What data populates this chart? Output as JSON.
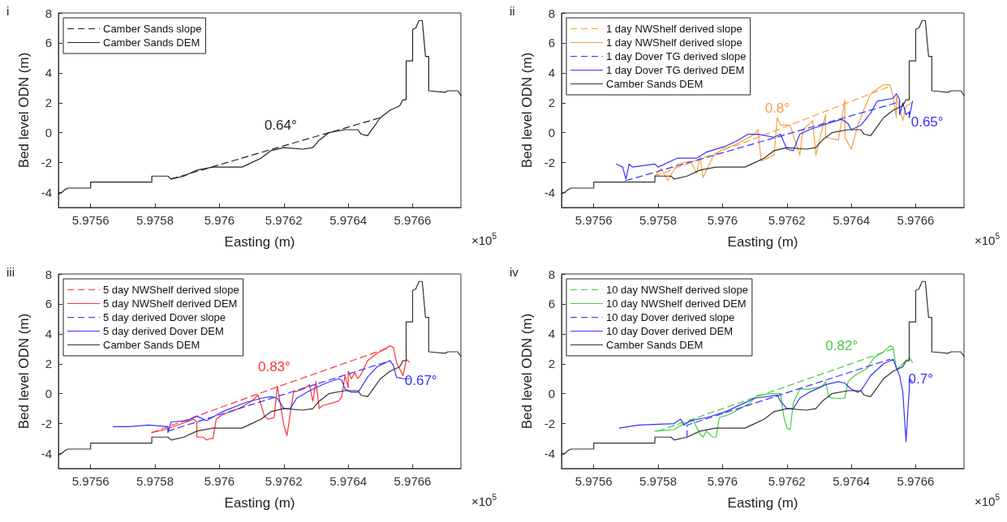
{
  "chart_data": [
    {
      "type": "line",
      "xlabel": "Easting (m)",
      "ylabel": "Bed level ODN (m)",
      "xlim": [
        5.9755,
        5.97675
      ],
      "xticks": [
        5.9756,
        5.9758,
        5.976,
        5.9762,
        5.9764,
        5.9766
      ],
      "ylim": [
        -5,
        8
      ],
      "yticks": [
        -4,
        -2,
        0,
        2,
        4,
        6,
        8
      ],
      "legend": "top left",
      "marker": "none",
      "annotations": [
        "i",
        "×10$^{5}$",
        {
          "text": "0.64°",
          "x": 5.97618,
          "y": -1.0
        }
      ],
      "series": [
        {
          "name": "Camber Sands slope",
          "color": "#222222",
          "line_style": "dashed",
          "x": [
            5.97585,
            5.97618,
            5.9765
          ],
          "values": [
            -3.1,
            -1.0,
            1.0
          ]
        },
        {
          "name": "Camber Sands DEM",
          "color": "#222222",
          "line_style": "solid",
          "x": [
            5.9755,
            5.97551,
            5.97552,
            5.97553,
            5.9756,
            5.9756,
            5.97579,
            5.97579,
            5.97584,
            5.97585,
            5.97589,
            5.97593,
            5.97598,
            5.97607,
            5.9761,
            5.97613,
            5.97616,
            5.9762,
            5.97626,
            5.97629,
            5.97631,
            5.97634,
            5.97639,
            5.97643,
            5.97644,
            5.97646,
            5.97648,
            5.9765,
            5.97653,
            5.97656,
            5.97657,
            5.97658,
            5.97658,
            5.9766,
            5.9766,
            5.97661,
            5.97662,
            5.97663,
            5.97664,
            5.97665,
            5.97665,
            5.9767,
            5.97671,
            5.97674,
            5.97675
          ],
          "values": [
            -4.1,
            -4.0,
            -3.8,
            -3.7,
            -3.7,
            -3.3,
            -3.3,
            -2.9,
            -2.9,
            -3.1,
            -2.9,
            -2.5,
            -2.3,
            -2.3,
            -2.0,
            -1.7,
            -1.2,
            -1.0,
            -1.1,
            -1.0,
            -0.5,
            0.0,
            0.2,
            0.2,
            -0.1,
            -0.2,
            0.4,
            1.0,
            1.5,
            1.8,
            2.2,
            2.2,
            4.8,
            4.8,
            6.9,
            7.0,
            7.5,
            7.5,
            5.1,
            5.1,
            2.8,
            2.7,
            2.8,
            2.8,
            2.5
          ]
        }
      ]
    },
    {
      "type": "line",
      "xlabel": "Easting (m)",
      "ylabel": "Bed level ODN (m)",
      "xlim": [
        5.9755,
        5.97675
      ],
      "xticks": [
        5.9756,
        5.9758,
        5.976,
        5.9762,
        5.9764,
        5.9766
      ],
      "ylim": [
        -5,
        8
      ],
      "yticks": [
        -4,
        -2,
        0,
        2,
        4,
        6,
        8
      ],
      "legend": "top left",
      "marker": "none",
      "annotations": [
        "ii",
        "×10$^{5}$",
        {
          "text": "0.8°",
          "x": 5.97616,
          "y": 0.1
        },
        {
          "text": "0.65°",
          "x": 5.97654,
          "y": 2.0
        }
      ],
      "series": [
        {
          "name": "1 day NWShelf derived slope",
          "color": "#f7a040",
          "line_style": "dashed",
          "x": [
            5.97579,
            5.97616,
            5.97652
          ],
          "values": [
            -2.9,
            0.1,
            3.1
          ]
        },
        {
          "name": "1 day NWShelf derived slope",
          "color": "#f7a040",
          "line_style": "solid",
          "x": [
            5.97579,
            5.97581,
            5.97583,
            5.97586,
            5.9759,
            5.97592,
            5.97593,
            5.97594,
            5.97597,
            5.976,
            5.97604,
            5.9761,
            5.97611,
            5.97612,
            5.97616,
            5.97617,
            5.97618,
            5.97621,
            5.97624,
            5.97625,
            5.97628,
            5.97629,
            5.97632,
            5.97632,
            5.97636,
            5.97638,
            5.97638,
            5.9764,
            5.97642,
            5.97644,
            5.97646,
            5.9765,
            5.97652,
            5.97653,
            5.97654,
            5.97654,
            5.97656,
            5.97657,
            5.97659
          ],
          "values": [
            -2.9,
            -2.4,
            -3.2,
            -2.1,
            -1.9,
            -2.7,
            -1.6,
            -3.0,
            -1.6,
            -1.1,
            -0.8,
            -0.1,
            0.2,
            -1.9,
            -1.5,
            1.0,
            0.5,
            0.5,
            -1.5,
            0.2,
            0.8,
            -1.5,
            1.2,
            -0.3,
            -0.5,
            2.2,
            -0.3,
            -1.1,
            0.5,
            1.6,
            2.6,
            3.2,
            3.2,
            2.4,
            1.0,
            2.4,
            0.8,
            1.8,
            2.0
          ]
        },
        {
          "name": "1 day Dover TG derived slope",
          "color": "#3333ff",
          "line_style": "dashed",
          "x": [
            5.9757,
            5.97654
          ],
          "values": [
            -3.2,
            2.0
          ]
        },
        {
          "name": "1 day Dover TG derived DEM",
          "color": "#3333ff",
          "line_style": "solid",
          "x": [
            5.97567,
            5.97569,
            5.9757,
            5.97571,
            5.97572,
            5.97579,
            5.9758,
            5.97586,
            5.97588,
            5.97592,
            5.97595,
            5.97601,
            5.97604,
            5.97608,
            5.97611,
            5.97616,
            5.97618,
            5.9762,
            5.97622,
            5.97624,
            5.97627,
            5.97631,
            5.97634,
            5.97637,
            5.97639,
            5.9764,
            5.97643,
            5.97646,
            5.97648,
            5.97653,
            5.97654,
            5.97655,
            5.97655,
            5.97656,
            5.97657,
            5.97658,
            5.97658,
            5.97659
          ],
          "values": [
            -2.1,
            -2.3,
            -3.1,
            -2.1,
            -2.3,
            -2.1,
            -2.3,
            -1.7,
            -1.7,
            -1.7,
            -1.3,
            -0.9,
            -0.6,
            -0.1,
            -0.1,
            -0.3,
            -0.1,
            -1.1,
            -1.2,
            -0.1,
            0.2,
            0.5,
            0.7,
            0.9,
            0.6,
            0.2,
            0.5,
            1.3,
            2.1,
            2.3,
            2.6,
            2.2,
            1.2,
            2.0,
            1.2,
            1.4,
            1.0,
            2.1
          ]
        },
        {
          "name": "Camber Sands DEM",
          "color": "#333333",
          "line_style": "solid",
          "x": [
            5.9755,
            5.97551,
            5.97552,
            5.97553,
            5.9756,
            5.9756,
            5.97579,
            5.97579,
            5.97584,
            5.97585,
            5.97589,
            5.97593,
            5.97598,
            5.97607,
            5.9761,
            5.97613,
            5.97616,
            5.9762,
            5.97626,
            5.97629,
            5.97631,
            5.97634,
            5.97639,
            5.97643,
            5.97644,
            5.97646,
            5.97648,
            5.9765,
            5.97653,
            5.97656,
            5.97657,
            5.97658,
            5.97658,
            5.9766,
            5.9766,
            5.97661,
            5.97662,
            5.97663,
            5.97664,
            5.97665,
            5.97665,
            5.9767,
            5.97671,
            5.97674,
            5.97675
          ],
          "values": [
            -4.1,
            -4.0,
            -3.8,
            -3.7,
            -3.7,
            -3.3,
            -3.3,
            -2.9,
            -2.9,
            -3.1,
            -2.9,
            -2.5,
            -2.3,
            -2.3,
            -2.0,
            -1.7,
            -1.2,
            -1.0,
            -1.1,
            -1.0,
            -0.5,
            0.0,
            0.2,
            0.2,
            -0.1,
            -0.2,
            0.4,
            1.0,
            1.5,
            1.8,
            2.2,
            2.2,
            4.8,
            4.8,
            6.9,
            7.0,
            7.5,
            7.5,
            5.1,
            5.1,
            2.8,
            2.7,
            2.8,
            2.8,
            2.5
          ]
        }
      ]
    },
    {
      "type": "line",
      "xlabel": "Easting (m)",
      "ylabel": "Bed level ODN (m)",
      "xlim": [
        5.9755,
        5.97675
      ],
      "xticks": [
        5.9756,
        5.9758,
        5.976,
        5.9762,
        5.9764,
        5.9766
      ],
      "ylim": [
        -5,
        8
      ],
      "yticks": [
        -4,
        -2,
        0,
        2,
        4,
        6,
        8
      ],
      "legend": "top left",
      "marker": "none",
      "annotations": [
        "iii",
        "×10$^{5}$",
        {
          "text": "0.83°",
          "x": 5.97616,
          "y": 0.3
        },
        {
          "text": "0.67°",
          "x": 5.97653,
          "y": 2.2
        }
      ],
      "series": [
        {
          "name": "5 day NWShelf derived slope",
          "color": "#ff3333",
          "line_style": "dashed",
          "x": [
            5.97579,
            5.97616,
            5.97653
          ],
          "values": [
            -2.6,
            0.3,
            3.1
          ]
        },
        {
          "name": "5 day NWShelf derived DEM",
          "color": "#ff3333",
          "line_style": "solid",
          "x": [
            5.97579,
            5.97583,
            5.97587,
            5.97592,
            5.97593,
            5.97593,
            5.97595,
            5.97596,
            5.97597,
            5.97598,
            5.97599,
            5.97601,
            5.97606,
            5.9761,
            5.97612,
            5.97614,
            5.97615,
            5.97617,
            5.97618,
            5.9762,
            5.97621,
            5.97623,
            5.97626,
            5.97628,
            5.97629,
            5.9763,
            5.97631,
            5.97632,
            5.97637,
            5.97638,
            5.97639,
            5.9764,
            5.9764,
            5.97641,
            5.97642,
            5.97643,
            5.97644,
            5.97646,
            5.97649,
            5.97653,
            5.97654,
            5.97655,
            5.97657,
            5.97658,
            5.97658,
            5.97659
          ],
          "values": [
            -2.6,
            -2.4,
            -2.1,
            -1.7,
            -1.9,
            -2.9,
            -2.9,
            -3.1,
            -3.0,
            -3.0,
            -1.7,
            -1.4,
            -1.0,
            -0.5,
            -0.1,
            -1.5,
            -1.7,
            -1.6,
            0.5,
            -2.1,
            -2.8,
            0.1,
            0.3,
            0.6,
            -0.5,
            0.8,
            -1.0,
            -0.8,
            -0.5,
            -0.2,
            1.2,
            0.4,
            1.5,
            1.0,
            1.4,
            1.0,
            1.3,
            2.2,
            2.7,
            3.2,
            3.1,
            2.1,
            1.2,
            2.2,
            2.3,
            2.1
          ]
        },
        {
          "name": "5 day derived Dover slope",
          "color": "#3333ff",
          "line_style": "dashed",
          "x": [
            5.97584,
            5.97653
          ],
          "values": [
            -2.5,
            2.2
          ]
        },
        {
          "name": "5 day derived Dover DEM",
          "color": "#3333ff",
          "line_style": "solid",
          "x": [
            5.97567,
            5.97572,
            5.97578,
            5.97584,
            5.97584,
            5.97585,
            5.9759,
            5.97593,
            5.97596,
            5.97601,
            5.97608,
            5.97613,
            5.97616,
            5.97618,
            5.9762,
            5.97622,
            5.97624,
            5.97628,
            5.97633,
            5.97637,
            5.97638,
            5.97639,
            5.97641,
            5.97643,
            5.97644,
            5.97646,
            5.97649,
            5.97653,
            5.97654,
            5.97655,
            5.97657,
            5.97659
          ],
          "values": [
            -2.2,
            -2.2,
            -2.1,
            -2.2,
            -2.6,
            -1.9,
            -1.8,
            -1.5,
            -1.8,
            -1.2,
            -0.6,
            -0.3,
            -0.2,
            -0.3,
            -1.0,
            -1.0,
            -0.3,
            0.2,
            0.7,
            1.0,
            0.9,
            0.3,
            0.1,
            0.1,
            0.4,
            1.1,
            1.8,
            2.2,
            1.9,
            1.1,
            1.0,
            1.0
          ]
        },
        {
          "name": "Camber Sands DEM",
          "color": "#333333",
          "line_style": "solid",
          "x": [
            5.9755,
            5.97551,
            5.97552,
            5.97553,
            5.9756,
            5.9756,
            5.97579,
            5.97579,
            5.97584,
            5.97585,
            5.97589,
            5.97593,
            5.97598,
            5.97607,
            5.9761,
            5.97613,
            5.97616,
            5.9762,
            5.97626,
            5.97629,
            5.97631,
            5.97634,
            5.97639,
            5.97643,
            5.97644,
            5.97646,
            5.97648,
            5.9765,
            5.97653,
            5.97656,
            5.97657,
            5.97658,
            5.97658,
            5.9766,
            5.9766,
            5.97661,
            5.97662,
            5.97663,
            5.97664,
            5.97665,
            5.97665,
            5.9767,
            5.97671,
            5.97674,
            5.97675
          ],
          "values": [
            -4.1,
            -4.0,
            -3.8,
            -3.7,
            -3.7,
            -3.3,
            -3.3,
            -2.9,
            -2.9,
            -3.1,
            -2.9,
            -2.5,
            -2.3,
            -2.3,
            -2.0,
            -1.7,
            -1.2,
            -1.0,
            -1.1,
            -1.0,
            -0.5,
            0.0,
            0.2,
            0.2,
            -0.1,
            -0.2,
            0.4,
            1.0,
            1.5,
            1.8,
            2.2,
            2.2,
            4.8,
            4.8,
            6.9,
            7.0,
            7.5,
            7.5,
            5.1,
            5.1,
            2.8,
            2.7,
            2.8,
            2.8,
            2.5
          ]
        }
      ]
    },
    {
      "type": "line",
      "xlabel": "Easting (m)",
      "ylabel": "Bed level ODN (m)",
      "xlim": [
        5.9755,
        5.97675
      ],
      "xticks": [
        5.9756,
        5.9758,
        5.976,
        5.9762,
        5.9764,
        5.9766
      ],
      "ylim": [
        -5,
        8
      ],
      "yticks": [
        -4,
        -2,
        0,
        2,
        4,
        6,
        8
      ],
      "legend": "top left",
      "marker": "none",
      "annotations": [
        "iv",
        "×10$^{5}$",
        {
          "text": "0.82°",
          "x": 5.97636,
          "y": 1.7
        },
        {
          "text": "0.7°",
          "x": 5.97652,
          "y": 2.3
        }
      ],
      "series": [
        {
          "name": "10 day NWShelf derived slope",
          "color": "#44cc44",
          "line_style": "dashed",
          "x": [
            5.9758,
            5.97636,
            5.97653
          ],
          "values": [
            -2.5,
            1.7,
            3.0
          ]
        },
        {
          "name": "10 day NWShelf derived DEM",
          "color": "#44cc44",
          "line_style": "solid",
          "x": [
            5.97579,
            5.97585,
            5.97588,
            5.97591,
            5.97593,
            5.97594,
            5.97595,
            5.97597,
            5.97598,
            5.97599,
            5.97602,
            5.97608,
            5.97611,
            5.97615,
            5.97618,
            5.97619,
            5.9762,
            5.97621,
            5.97622,
            5.97624,
            5.97627,
            5.97631,
            5.97632,
            5.97633,
            5.97634,
            5.97638,
            5.97639,
            5.97641,
            5.97645,
            5.97647,
            5.9765,
            5.97652,
            5.97653,
            5.97654,
            5.97656,
            5.97658,
            5.97659
          ],
          "values": [
            -2.5,
            -2.4,
            -2.0,
            -1.8,
            -2.7,
            -2.9,
            -2.5,
            -2.9,
            -2.9,
            -1.6,
            -1.4,
            -0.7,
            -0.1,
            0.0,
            0.0,
            -1.5,
            -2.3,
            -2.4,
            -0.6,
            0.3,
            0.3,
            0.5,
            0.8,
            -0.2,
            -0.3,
            -0.3,
            0.8,
            1.2,
            1.7,
            2.4,
            2.8,
            3.2,
            3.1,
            1.6,
            2.0,
            2.4,
            2.1
          ]
        },
        {
          "name": "10 day Dover derived slope",
          "color": "#3333ff",
          "line_style": "dashed",
          "x": [
            5.97589,
            5.97589,
            5.97652
          ],
          "values": [
            -2.9,
            -2.1,
            2.3
          ]
        },
        {
          "name": "10 day Dover derived DEM",
          "color": "#3333ff",
          "line_style": "solid",
          "x": [
            5.97568,
            5.97574,
            5.97585,
            5.97587,
            5.97588,
            5.9759,
            5.97595,
            5.97601,
            5.97606,
            5.9761,
            5.97617,
            5.97618,
            5.9762,
            5.97622,
            5.97624,
            5.97627,
            5.97632,
            5.97636,
            5.97638,
            5.9764,
            5.97642,
            5.97643,
            5.97646,
            5.9765,
            5.97653,
            5.97655,
            5.97656,
            5.97657,
            5.97658,
            5.97658,
            5.97659
          ],
          "values": [
            -2.3,
            -2.1,
            -2.0,
            -1.7,
            -2.1,
            -1.8,
            -1.6,
            -1.2,
            -0.7,
            -0.3,
            -0.1,
            -0.5,
            -1.0,
            -1.0,
            -0.3,
            0.1,
            0.6,
            0.8,
            0.7,
            0.3,
            0.1,
            0.2,
            1.2,
            2.0,
            2.3,
            1.2,
            0.1,
            -3.2,
            0.3,
            1.0,
            0.8
          ]
        },
        {
          "name": "Camber Sands DEM",
          "color": "#333333",
          "line_style": "solid",
          "x": [
            5.9755,
            5.97551,
            5.97552,
            5.97553,
            5.9756,
            5.9756,
            5.97579,
            5.97579,
            5.97584,
            5.97585,
            5.97589,
            5.97593,
            5.97598,
            5.97607,
            5.9761,
            5.97613,
            5.97616,
            5.9762,
            5.97626,
            5.97629,
            5.97631,
            5.97634,
            5.97639,
            5.97643,
            5.97644,
            5.97646,
            5.97648,
            5.9765,
            5.97653,
            5.97656,
            5.97657,
            5.97658,
            5.97658,
            5.9766,
            5.9766,
            5.97661,
            5.97662,
            5.97663,
            5.97664,
            5.97665,
            5.97665,
            5.9767,
            5.97671,
            5.97674,
            5.97675
          ],
          "values": [
            -4.1,
            -4.0,
            -3.8,
            -3.7,
            -3.7,
            -3.3,
            -3.3,
            -2.9,
            -2.9,
            -3.1,
            -2.9,
            -2.5,
            -2.3,
            -2.3,
            -2.0,
            -1.7,
            -1.2,
            -1.0,
            -1.1,
            -1.0,
            -0.5,
            0.0,
            0.2,
            0.2,
            -0.1,
            -0.2,
            0.4,
            1.0,
            1.5,
            1.8,
            2.2,
            2.2,
            4.8,
            4.8,
            6.9,
            7.0,
            7.5,
            7.5,
            5.1,
            5.1,
            2.8,
            2.7,
            2.8,
            2.8,
            2.5
          ]
        }
      ]
    }
  ]
}
